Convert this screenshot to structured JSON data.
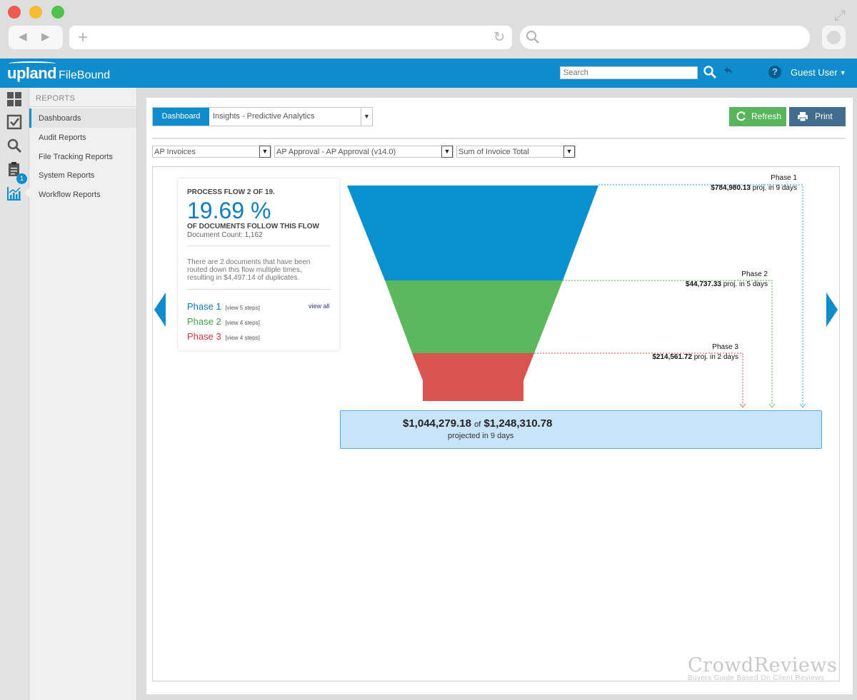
{
  "browser": {
    "back_icon": "back-arrow-icon",
    "forward_icon": "forward-arrow-icon",
    "new_tab_icon": "plus-icon",
    "reload_icon": "reload-icon",
    "search_icon": "search-icon"
  },
  "header": {
    "brand": "upland",
    "product": "FileBound",
    "search_placeholder": "Search",
    "user": "Guest User",
    "accent": "#0e8ccb"
  },
  "rail": {
    "badge": "1"
  },
  "sidebar": {
    "title": "REPORTS",
    "items": [
      {
        "label": "Dashboards"
      },
      {
        "label": "Audit Reports"
      },
      {
        "label": "File Tracking Reports"
      },
      {
        "label": "System Reports"
      },
      {
        "label": "Workflow Reports"
      }
    ]
  },
  "toolbar": {
    "tab_label": "Dashboard",
    "dashboard_select": "Insights - Predictive Analytics",
    "refresh_label": "Refresh",
    "print_label": "Print"
  },
  "filters": {
    "process": "AP Invoices",
    "workflow": "AP Approval - AP Approval (v14.0)",
    "measure": "Sum of Invoice Total"
  },
  "card": {
    "process_flow": "PROCESS FLOW 2 OF 19.",
    "percent": "19.69 %",
    "follow_text": "OF DOCUMENTS FOLLOW THIS FLOW",
    "doc_count": "Document Count: 1,162",
    "note": "There are 2 documents that have been routed down this flow multiple times, resulting in $4,497.14 of duplicates.",
    "view_all": "view all",
    "phases": [
      {
        "name": "Phase 1",
        "steps": "[view 5 steps]",
        "color": "#0e7cc0"
      },
      {
        "name": "Phase 2",
        "steps": "[view 4 steps]",
        "color": "#3fa645"
      },
      {
        "name": "Phase 3",
        "steps": "[view 4 steps]",
        "color": "#d8393b"
      }
    ]
  },
  "funnel": {
    "phases": [
      {
        "name": "Phase 1",
        "value": "$784,980.13",
        "suffix": "proj. in 9 days",
        "color": "#0991cf"
      },
      {
        "name": "Phase 2",
        "value": "$44,737.33",
        "suffix": "proj. in 5 days",
        "color": "#5cb85c"
      },
      {
        "name": "Phase 3",
        "value": "$214,561.72",
        "suffix": "proj. in 2 days",
        "color": "#d9534f"
      }
    ],
    "total": "$1,044,279.18",
    "of": "of",
    "grand_total": "$1,248,310.78",
    "projected": "projected in 9 days"
  },
  "watermark": {
    "brand": "CrowdReviews",
    "tagline": "Buyers Guide Based On Client Reviews"
  }
}
